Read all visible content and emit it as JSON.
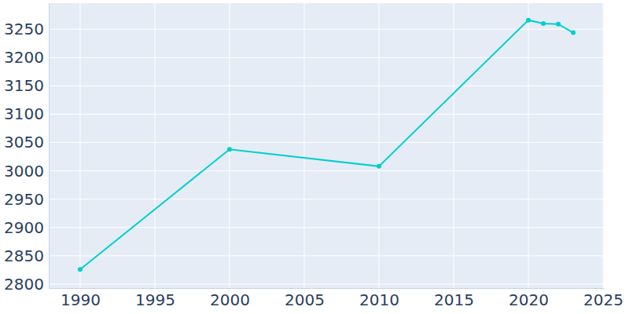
{
  "chart_data": {
    "type": "line",
    "x": [
      1990,
      2000,
      2010,
      2020,
      2021,
      2022,
      2023
    ],
    "values": [
      2826,
      3038,
      3008,
      3266,
      3260,
      3259,
      3244
    ],
    "color": "#00cfcf",
    "marker": "circle",
    "xlim": [
      1987.9,
      2025.05
    ],
    "xticks": [
      1990,
      1995,
      2000,
      2005,
      2010,
      2015,
      2020,
      2025
    ],
    "ylim": [
      2793,
      3296
    ],
    "yticks": [
      2800,
      2850,
      2900,
      2950,
      3000,
      3050,
      3100,
      3150,
      3200,
      3250
    ],
    "grid": true
  }
}
